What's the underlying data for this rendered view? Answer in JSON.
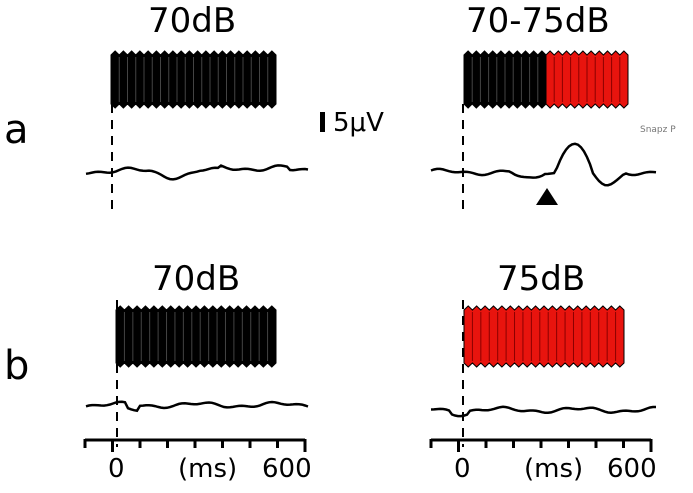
{
  "rows": [
    {
      "letter": "a",
      "left": {
        "title": "70dB",
        "trace": "flat"
      },
      "right": {
        "title": "70-75dB",
        "trace": "mmn",
        "marker": "triangle"
      }
    },
    {
      "letter": "b",
      "left": {
        "title": "70dB",
        "trace": "flat"
      },
      "right": {
        "title": "75dB",
        "trace": "flat"
      }
    }
  ],
  "scale_bar": {
    "label": "5μV"
  },
  "time_axis": {
    "start_label": "0",
    "unit_label": "(ms)",
    "end_label": "600"
  },
  "watermark": "Snapz P",
  "colors": {
    "standard_tone": "#000000",
    "deviant_tone": "#e8140e",
    "trace": "#000000"
  }
}
